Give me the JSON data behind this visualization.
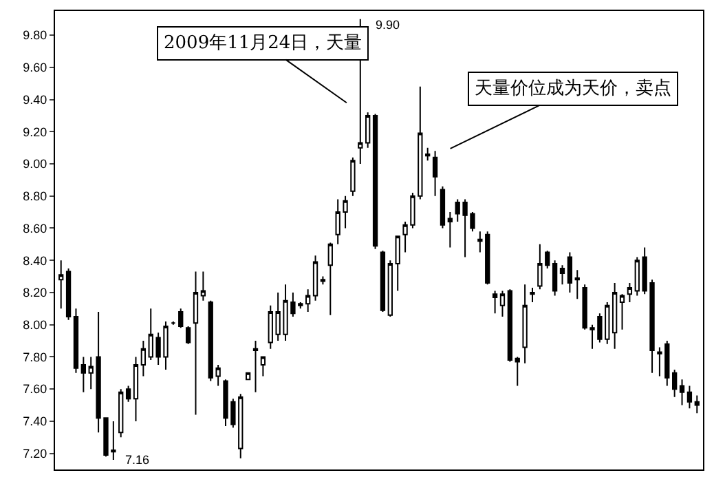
{
  "chart_data": {
    "type": "candlestick",
    "categories": [
      null,
      null,
      null,
      null,
      null,
      null,
      null,
      null,
      null,
      null,
      null,
      null,
      null,
      null,
      null,
      null,
      null,
      null,
      null,
      null,
      null,
      null,
      null,
      null,
      null,
      null,
      null,
      null,
      null,
      null,
      null,
      null,
      null,
      null,
      null,
      null,
      null,
      null,
      null,
      null,
      null,
      null,
      null,
      null,
      null,
      null,
      null,
      null,
      null,
      null,
      null,
      null,
      null,
      null,
      null,
      null,
      null,
      null,
      null,
      null,
      null,
      null,
      null,
      null,
      null,
      null,
      null,
      null,
      null,
      null,
      null,
      null,
      null,
      null,
      null,
      null,
      null,
      null,
      null,
      null,
      null,
      null,
      null,
      null,
      null,
      null
    ],
    "ohlc": [
      [
        8.28,
        8.4,
        8.1,
        8.31
      ],
      [
        8.33,
        8.35,
        8.03,
        8.05
      ],
      [
        8.05,
        8.1,
        7.7,
        7.73
      ],
      [
        7.75,
        7.8,
        7.58,
        7.7
      ],
      [
        7.7,
        7.8,
        7.6,
        7.74
      ],
      [
        7.8,
        8.08,
        7.33,
        7.42
      ],
      [
        7.42,
        7.42,
        7.18,
        7.19
      ],
      [
        7.21,
        7.4,
        7.16,
        7.22
      ],
      [
        7.33,
        7.6,
        7.3,
        7.58
      ],
      [
        7.6,
        7.62,
        7.52,
        7.54
      ],
      [
        7.54,
        7.8,
        7.4,
        7.75
      ],
      [
        7.75,
        7.9,
        7.68,
        7.85
      ],
      [
        7.8,
        8.1,
        7.78,
        7.94
      ],
      [
        7.92,
        7.95,
        7.75,
        7.8
      ],
      [
        7.8,
        8.02,
        7.72,
        7.99
      ],
      [
        8.01,
        8.02,
        8.0,
        8.01
      ],
      [
        8.08,
        8.1,
        7.98,
        7.99
      ],
      [
        7.98,
        7.99,
        7.88,
        7.89
      ],
      [
        8.01,
        8.33,
        7.44,
        8.2
      ],
      [
        8.18,
        8.33,
        8.15,
        8.21
      ],
      [
        8.14,
        8.15,
        7.65,
        7.67
      ],
      [
        7.68,
        7.75,
        7.62,
        7.73
      ],
      [
        7.65,
        7.66,
        7.37,
        7.42
      ],
      [
        7.52,
        7.54,
        7.36,
        7.38
      ],
      [
        7.23,
        7.57,
        7.17,
        7.55
      ],
      [
        7.66,
        7.7,
        7.66,
        7.7
      ],
      [
        7.84,
        7.9,
        7.58,
        7.85
      ],
      [
        7.75,
        7.8,
        7.68,
        7.8
      ],
      [
        7.89,
        8.12,
        7.85,
        8.08
      ],
      [
        7.94,
        8.2,
        7.9,
        8.08
      ],
      [
        7.94,
        8.25,
        7.9,
        8.15
      ],
      [
        8.14,
        8.2,
        8.05,
        8.07
      ],
      [
        8.12,
        8.14,
        8.1,
        8.13
      ],
      [
        8.13,
        8.22,
        8.08,
        8.18
      ],
      [
        8.18,
        8.43,
        8.15,
        8.39
      ],
      [
        8.27,
        8.3,
        8.25,
        8.28
      ],
      [
        8.37,
        8.51,
        8.06,
        8.5
      ],
      [
        8.56,
        8.78,
        8.5,
        8.7
      ],
      [
        8.7,
        8.8,
        8.6,
        8.77
      ],
      [
        8.83,
        9.04,
        8.8,
        9.02
      ],
      [
        9.1,
        9.9,
        9.0,
        9.13
      ],
      [
        9.13,
        9.32,
        9.1,
        9.3
      ],
      [
        9.3,
        9.31,
        8.47,
        8.49
      ],
      [
        8.45,
        8.46,
        8.08,
        8.09
      ],
      [
        8.06,
        8.4,
        8.05,
        8.38
      ],
      [
        8.38,
        8.55,
        8.21,
        8.55
      ],
      [
        8.56,
        8.64,
        8.45,
        8.62
      ],
      [
        8.62,
        8.82,
        8.6,
        8.8
      ],
      [
        8.8,
        9.48,
        8.78,
        9.19
      ],
      [
        9.05,
        9.1,
        9.02,
        9.06
      ],
      [
        9.04,
        9.08,
        8.8,
        8.92
      ],
      [
        8.84,
        8.86,
        8.6,
        8.62
      ],
      [
        8.66,
        8.7,
        8.48,
        8.64
      ],
      [
        8.76,
        8.78,
        8.64,
        8.69
      ],
      [
        8.76,
        8.78,
        8.42,
        8.68
      ],
      [
        8.69,
        8.7,
        8.58,
        8.6
      ],
      [
        8.52,
        8.58,
        8.45,
        8.53
      ],
      [
        8.56,
        8.58,
        8.25,
        8.26
      ],
      [
        8.19,
        8.21,
        8.07,
        8.17
      ],
      [
        8.12,
        8.21,
        8.05,
        8.19
      ],
      [
        8.21,
        8.22,
        7.77,
        7.78
      ],
      [
        7.79,
        7.8,
        7.62,
        7.77
      ],
      [
        7.86,
        8.25,
        7.76,
        8.12
      ],
      [
        8.19,
        8.23,
        8.14,
        8.2
      ],
      [
        8.24,
        8.5,
        8.22,
        8.38
      ],
      [
        8.45,
        8.46,
        8.35,
        8.37
      ],
      [
        8.38,
        8.4,
        8.18,
        8.21
      ],
      [
        8.35,
        8.37,
        8.25,
        8.32
      ],
      [
        8.42,
        8.45,
        8.2,
        8.26
      ],
      [
        8.29,
        8.34,
        8.16,
        8.28
      ],
      [
        8.23,
        8.25,
        7.97,
        7.98
      ],
      [
        7.98,
        8.0,
        7.85,
        7.97
      ],
      [
        8.05,
        8.07,
        7.89,
        7.91
      ],
      [
        7.91,
        8.14,
        7.88,
        8.12
      ],
      [
        7.95,
        8.26,
        7.85,
        8.2
      ],
      [
        8.14,
        8.19,
        7.97,
        8.18
      ],
      [
        8.19,
        8.26,
        8.14,
        8.23
      ],
      [
        8.21,
        8.42,
        8.18,
        8.4
      ],
      [
        8.42,
        8.48,
        8.19,
        8.21
      ],
      [
        8.26,
        8.28,
        7.7,
        7.84
      ],
      [
        7.83,
        7.86,
        7.68,
        7.82
      ],
      [
        7.88,
        7.9,
        7.62,
        7.67
      ],
      [
        7.7,
        7.72,
        7.55,
        7.6
      ],
      [
        7.62,
        7.66,
        7.5,
        7.58
      ],
      [
        7.58,
        7.62,
        7.48,
        7.52
      ],
      [
        7.52,
        7.56,
        7.45,
        7.5
      ]
    ],
    "ylim": [
      7.1,
      9.95
    ],
    "yticks": [
      {
        "value": 7.2,
        "label": "7.20"
      },
      {
        "value": 7.4,
        "label": "7.40"
      },
      {
        "value": 7.6,
        "label": "7.60"
      },
      {
        "value": 7.8,
        "label": "7.80"
      },
      {
        "value": 8.0,
        "label": "8.00"
      },
      {
        "value": 8.2,
        "label": "8.20"
      },
      {
        "value": 8.4,
        "label": "8.40"
      },
      {
        "value": 8.6,
        "label": "8.60"
      },
      {
        "value": 8.8,
        "label": "8.80"
      },
      {
        "value": 9.0,
        "label": "9.00"
      },
      {
        "value": 9.2,
        "label": "9.20"
      },
      {
        "value": 9.4,
        "label": "9.40"
      },
      {
        "value": 9.6,
        "label": "9.60"
      },
      {
        "value": 9.8,
        "label": "9.80"
      }
    ],
    "tick_labels": "y",
    "grid": false,
    "annotations": [
      "7.16",
      "9.90",
      "2009年11月24日，天量",
      "天量价位成为天价，卖点"
    ]
  }
}
